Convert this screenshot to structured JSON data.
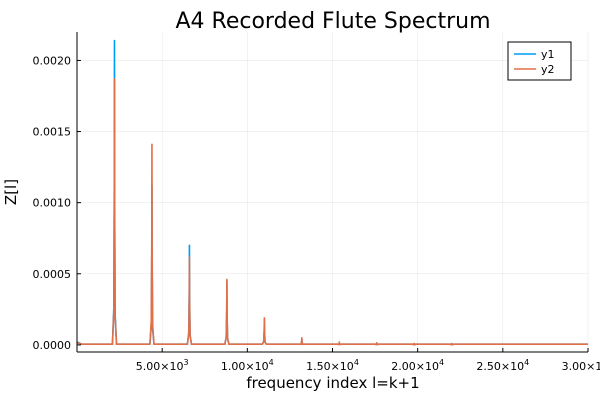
{
  "chart_data": {
    "type": "line",
    "title": "A4 Recorded Flute Spectrum",
    "xlabel": "frequency index l=k+1",
    "ylabel": "Z[l]",
    "xlim": [
      0,
      30000
    ],
    "ylim": [
      -5e-05,
      0.0022
    ],
    "grid": true,
    "legend_position": "top-right",
    "x_ticks": [
      {
        "value": 5000,
        "mantissa": "5.00",
        "exponent": "3"
      },
      {
        "value": 10000,
        "mantissa": "1.00",
        "exponent": "4"
      },
      {
        "value": 15000,
        "mantissa": "1.50",
        "exponent": "4"
      },
      {
        "value": 20000,
        "mantissa": "2.00",
        "exponent": "4"
      },
      {
        "value": 25000,
        "mantissa": "2.50",
        "exponent": "4"
      },
      {
        "value": 30000,
        "mantissa": "3.00",
        "exponent": "4"
      }
    ],
    "y_ticks": [
      {
        "value": 0.0,
        "label": "0.0000"
      },
      {
        "value": 0.0005,
        "label": "0.0005"
      },
      {
        "value": 0.001,
        "label": "0.0010"
      },
      {
        "value": 0.0015,
        "label": "0.0015"
      },
      {
        "value": 0.002,
        "label": "0.0020"
      }
    ],
    "series": [
      {
        "name": "y1",
        "color": "#009af9",
        "baseline": 5e-06,
        "peaks": [
          {
            "x": 2200,
            "y": 0.00214
          },
          {
            "x": 4400,
            "y": 0.00112
          },
          {
            "x": 6600,
            "y": 0.0007
          },
          {
            "x": 8800,
            "y": 0.00045
          },
          {
            "x": 11000,
            "y": 0.00018
          },
          {
            "x": 13200,
            "y": 4e-05
          }
        ]
      },
      {
        "name": "y2",
        "color": "#e26f46",
        "baseline": 5e-06,
        "peaks": [
          {
            "x": 2200,
            "y": 0.00187
          },
          {
            "x": 4400,
            "y": 0.00141
          },
          {
            "x": 6600,
            "y": 0.00062
          },
          {
            "x": 8800,
            "y": 0.00046
          },
          {
            "x": 11000,
            "y": 0.00019
          },
          {
            "x": 13200,
            "y": 5e-05
          },
          {
            "x": 15400,
            "y": 2e-05
          },
          {
            "x": 17600,
            "y": 1.5e-05
          },
          {
            "x": 19800,
            "y": 1e-05
          },
          {
            "x": 22000,
            "y": 1e-05
          }
        ]
      }
    ]
  }
}
